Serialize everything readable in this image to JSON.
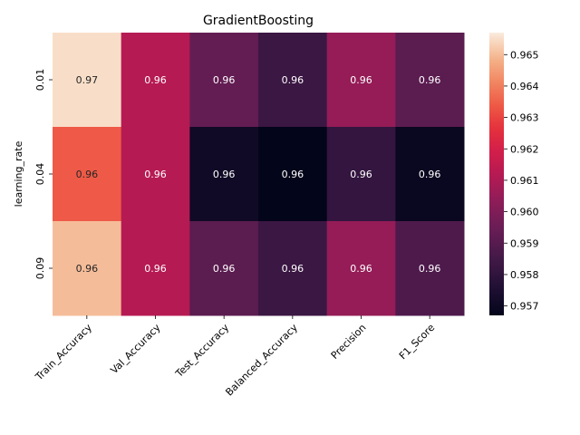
{
  "chart_data": {
    "type": "heatmap",
    "title": "GradientBoosting",
    "xlabel": "",
    "ylabel": "learning_rate",
    "x_categories": [
      "Train_Accuracy",
      "Val_Accuracy",
      "Test_Accuracy",
      "Balanced_Accuracy",
      "Precision",
      "F1_Score"
    ],
    "y_categories": [
      "0.01",
      "0.04",
      "0.09"
    ],
    "values": [
      [
        0.9655,
        0.9612,
        0.9593,
        0.9583,
        0.9605,
        0.9591
      ],
      [
        0.9634,
        0.9612,
        0.9571,
        0.9567,
        0.9581,
        0.9569
      ],
      [
        0.965,
        0.9612,
        0.9591,
        0.9583,
        0.9605,
        0.9588
      ]
    ],
    "cell_labels": [
      [
        "0.97",
        "0.96",
        "0.96",
        "0.96",
        "0.96",
        "0.96"
      ],
      [
        "0.96",
        "0.96",
        "0.96",
        "0.96",
        "0.96",
        "0.96"
      ],
      [
        "0.96",
        "0.96",
        "0.96",
        "0.96",
        "0.96",
        "0.96"
      ]
    ],
    "colormap": "rocket",
    "colorbar": {
      "vmin": 0.9567,
      "vmax": 0.9657,
      "ticks": [
        0.957,
        0.958,
        0.959,
        0.96,
        0.961,
        0.962,
        0.963,
        0.964,
        0.965
      ],
      "tick_labels": [
        "0.957",
        "0.958",
        "0.959",
        "0.960",
        "0.961",
        "0.962",
        "0.963",
        "0.964",
        "0.965"
      ]
    },
    "x_tick_rotation_deg": 45,
    "y_tick_rotation_deg": 90,
    "grid": false
  }
}
